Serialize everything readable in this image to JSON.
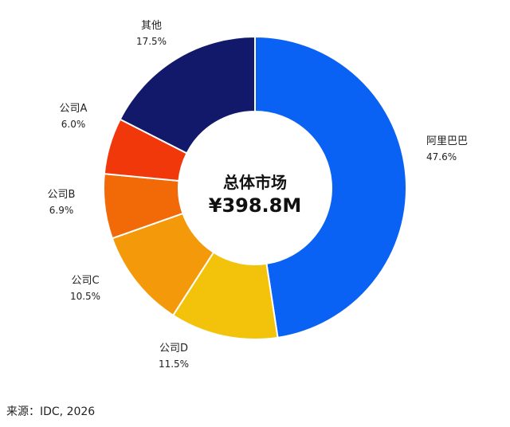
{
  "chart_data": {
    "type": "pie",
    "subtype": "donut",
    "categories": [
      "阿里巴巴",
      "公司D",
      "公司C",
      "公司B",
      "公司A",
      "其他"
    ],
    "values": [
      47.6,
      11.5,
      10.5,
      6.9,
      6.0,
      17.5
    ],
    "value_labels": [
      "47.6%",
      "11.5%",
      "10.5%",
      "6.9%",
      "6.0%",
      "17.5%"
    ],
    "colors": [
      "#0a62f5",
      "#f3c30c",
      "#f49a0a",
      "#f26a08",
      "#f0380a",
      "#12196b"
    ],
    "center_title": "总体市场",
    "center_value": "¥398.8M",
    "legend": "none"
  },
  "source": "来源：IDC, 2026"
}
